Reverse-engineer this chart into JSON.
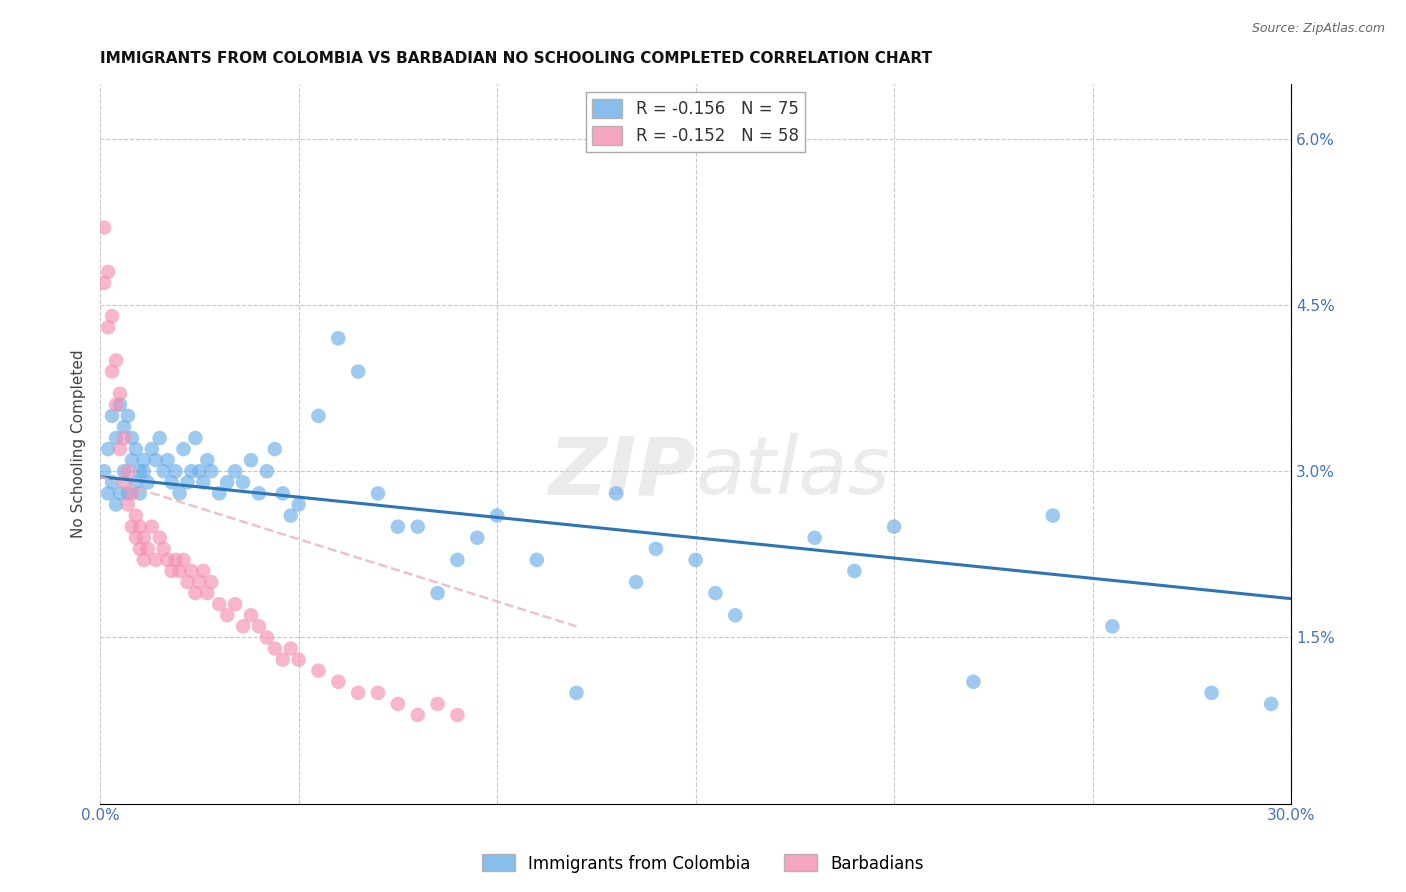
{
  "title": "IMMIGRANTS FROM COLOMBIA VS BARBADIAN NO SCHOOLING COMPLETED CORRELATION CHART",
  "source": "Source: ZipAtlas.com",
  "ylabel": "No Schooling Completed",
  "xlim": [
    0.0,
    0.3
  ],
  "ylim": [
    0.0,
    0.065
  ],
  "xticks": [
    0.0,
    0.05,
    0.1,
    0.15,
    0.2,
    0.25,
    0.3
  ],
  "xtick_labels": [
    "0.0%",
    "",
    "",
    "",
    "",
    "",
    "30.0%"
  ],
  "yticks_right": [
    0.015,
    0.03,
    0.045,
    0.06
  ],
  "ytick_labels_right": [
    "1.5%",
    "3.0%",
    "4.5%",
    "6.0%"
  ],
  "legend_entries": [
    {
      "label": "Immigrants from Colombia",
      "R": "-0.156",
      "N": "75",
      "color": "#7eb3e8"
    },
    {
      "label": "Barbadians",
      "R": "-0.152",
      "N": "58",
      "color": "#f4a0b0"
    }
  ],
  "blue_scatter_x": [
    0.001,
    0.002,
    0.002,
    0.003,
    0.003,
    0.004,
    0.004,
    0.005,
    0.005,
    0.006,
    0.006,
    0.007,
    0.007,
    0.008,
    0.008,
    0.009,
    0.009,
    0.01,
    0.01,
    0.011,
    0.011,
    0.012,
    0.013,
    0.014,
    0.015,
    0.016,
    0.017,
    0.018,
    0.019,
    0.02,
    0.021,
    0.022,
    0.023,
    0.024,
    0.025,
    0.026,
    0.027,
    0.028,
    0.03,
    0.032,
    0.034,
    0.036,
    0.038,
    0.04,
    0.042,
    0.044,
    0.046,
    0.048,
    0.05,
    0.055,
    0.06,
    0.065,
    0.07,
    0.075,
    0.08,
    0.085,
    0.09,
    0.095,
    0.1,
    0.11,
    0.12,
    0.13,
    0.135,
    0.14,
    0.15,
    0.155,
    0.16,
    0.18,
    0.19,
    0.2,
    0.22,
    0.24,
    0.255,
    0.28,
    0.295
  ],
  "blue_scatter_y": [
    0.03,
    0.032,
    0.028,
    0.035,
    0.029,
    0.033,
    0.027,
    0.036,
    0.028,
    0.034,
    0.03,
    0.035,
    0.028,
    0.033,
    0.031,
    0.029,
    0.032,
    0.03,
    0.028,
    0.031,
    0.03,
    0.029,
    0.032,
    0.031,
    0.033,
    0.03,
    0.031,
    0.029,
    0.03,
    0.028,
    0.032,
    0.029,
    0.03,
    0.033,
    0.03,
    0.029,
    0.031,
    0.03,
    0.028,
    0.029,
    0.03,
    0.029,
    0.031,
    0.028,
    0.03,
    0.032,
    0.028,
    0.026,
    0.027,
    0.035,
    0.042,
    0.039,
    0.028,
    0.025,
    0.025,
    0.019,
    0.022,
    0.024,
    0.026,
    0.022,
    0.01,
    0.028,
    0.02,
    0.023,
    0.022,
    0.019,
    0.017,
    0.024,
    0.021,
    0.025,
    0.011,
    0.026,
    0.016,
    0.01,
    0.009
  ],
  "pink_scatter_x": [
    0.001,
    0.001,
    0.002,
    0.002,
    0.003,
    0.003,
    0.004,
    0.004,
    0.005,
    0.005,
    0.006,
    0.006,
    0.007,
    0.007,
    0.008,
    0.008,
    0.009,
    0.009,
    0.01,
    0.01,
    0.011,
    0.011,
    0.012,
    0.013,
    0.014,
    0.015,
    0.016,
    0.017,
    0.018,
    0.019,
    0.02,
    0.021,
    0.022,
    0.023,
    0.024,
    0.025,
    0.026,
    0.027,
    0.028,
    0.03,
    0.032,
    0.034,
    0.036,
    0.038,
    0.04,
    0.042,
    0.044,
    0.046,
    0.048,
    0.05,
    0.055,
    0.06,
    0.065,
    0.07,
    0.075,
    0.08,
    0.085,
    0.09
  ],
  "pink_scatter_y": [
    0.052,
    0.047,
    0.048,
    0.043,
    0.044,
    0.039,
    0.04,
    0.036,
    0.037,
    0.032,
    0.033,
    0.029,
    0.03,
    0.027,
    0.028,
    0.025,
    0.026,
    0.024,
    0.025,
    0.023,
    0.024,
    0.022,
    0.023,
    0.025,
    0.022,
    0.024,
    0.023,
    0.022,
    0.021,
    0.022,
    0.021,
    0.022,
    0.02,
    0.021,
    0.019,
    0.02,
    0.021,
    0.019,
    0.02,
    0.018,
    0.017,
    0.018,
    0.016,
    0.017,
    0.016,
    0.015,
    0.014,
    0.013,
    0.014,
    0.013,
    0.012,
    0.011,
    0.01,
    0.01,
    0.009,
    0.008,
    0.009,
    0.008
  ],
  "blue_trend_x": [
    0.0,
    0.3
  ],
  "blue_trend_y": [
    0.0295,
    0.0185
  ],
  "pink_trend_x": [
    0.0,
    0.12
  ],
  "pink_trend_y": [
    0.0295,
    0.016
  ],
  "blue_color": "#6aaee8",
  "pink_color": "#f48fb1",
  "blue_trend_color": "#2e75b6",
  "pink_trend_color": "#e8b4c0",
  "watermark_zip": "ZIP",
  "watermark_atlas": "atlas",
  "background_color": "#ffffff",
  "grid_color": "#c8c8c8"
}
